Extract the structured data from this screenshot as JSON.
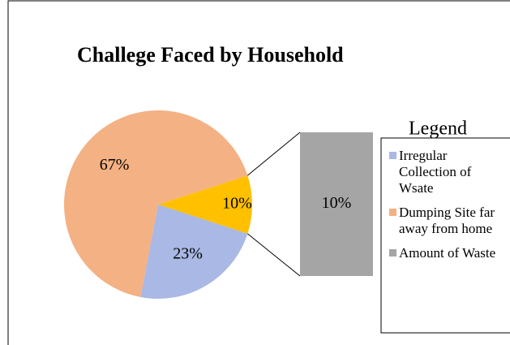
{
  "chart_data": {
    "type": "pie-of-bar",
    "title": "Challege Faced by Household",
    "legend_title": "Legend",
    "categories": [
      "Irregular Collection of Wsate",
      "Dumping Site far away from home",
      "Amount of Waste"
    ],
    "values": [
      23,
      67,
      10
    ],
    "value_labels": [
      "23%",
      "67%",
      "10%"
    ],
    "colors": [
      "#a9b8e4",
      "#f4b183",
      "#a5a5a5"
    ],
    "other_color": "#ffc000",
    "legend": "right"
  }
}
